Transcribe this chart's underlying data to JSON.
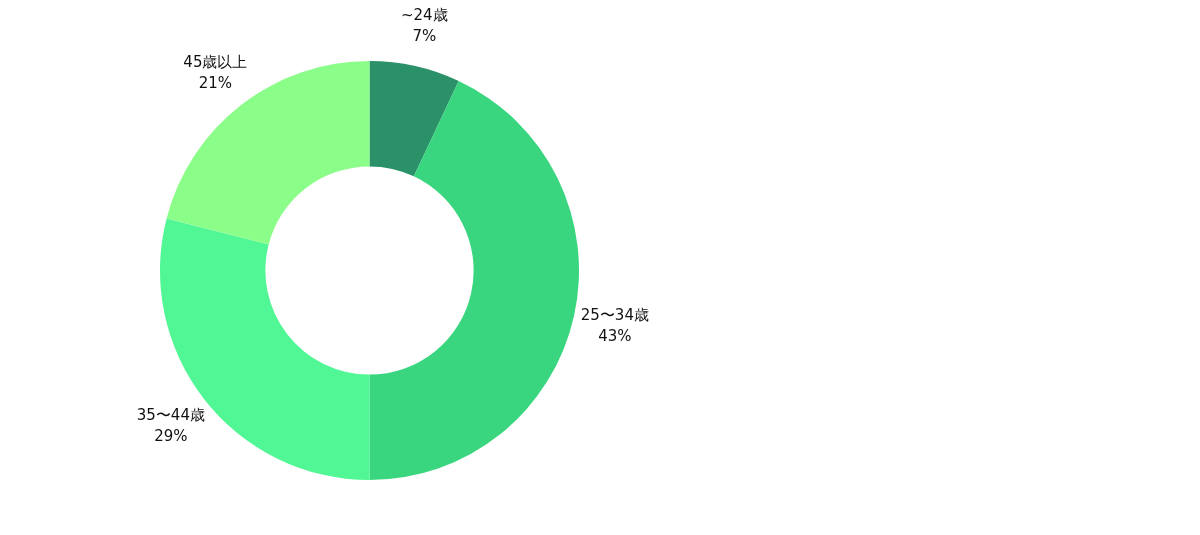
{
  "chart_data": {
    "type": "donut",
    "categories": [
      "~24歳",
      "25〜34歳",
      "35〜44歳",
      "45歳以上"
    ],
    "values": [
      7,
      43,
      29,
      21
    ],
    "colors": [
      "#2a9169",
      "#39d67f",
      "#52f795",
      "#8bfd89"
    ],
    "value_labels": [
      "7%",
      "43%",
      "29%",
      "21%"
    ]
  }
}
